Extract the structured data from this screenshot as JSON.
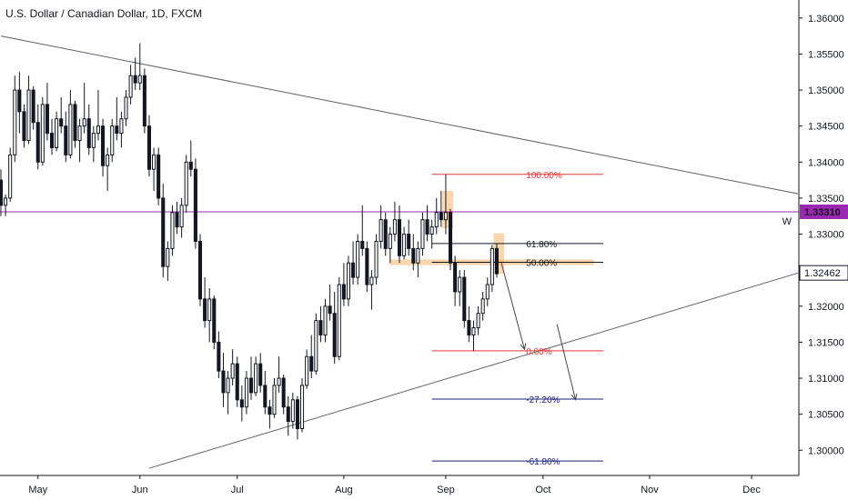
{
  "header": {
    "title": "U.S. Dollar / Canadian Dollar, 1D, FXCM"
  },
  "colors": {
    "candle": "#131722",
    "trendline": "#5d606b",
    "horizontal_line": "#9c27b0",
    "fib_100": "#e53935",
    "fib_0": "#e53935",
    "fib_618": "#131722",
    "fib_50": "#131722",
    "fib_ext": "#1a237e",
    "zone": "#f5b56b",
    "arrow": "#434651"
  },
  "chart_data": {
    "type": "candlestick",
    "ylim": [
      1.2965,
      1.3625
    ],
    "y_ticks": [
      "1.36000",
      "1.35500",
      "1.35000",
      "1.34500",
      "1.34000",
      "1.33500",
      "1.33000",
      "1.32500",
      "1.32000",
      "1.31500",
      "1.31000",
      "1.30500",
      "1.30000"
    ],
    "y_tick_values": [
      1.36,
      1.355,
      1.35,
      1.345,
      1.34,
      1.335,
      1.33,
      1.325,
      1.32,
      1.315,
      1.31,
      1.305,
      1.3
    ],
    "x_labels": [
      {
        "label": "May",
        "index": 8
      },
      {
        "label": "Jun",
        "index": 30
      },
      {
        "label": "Jul",
        "index": 51
      },
      {
        "label": "Aug",
        "index": 74
      },
      {
        "label": "Sep",
        "index": 96
      },
      {
        "label": "Oct",
        "index": 117
      },
      {
        "label": "Nov",
        "index": 140
      },
      {
        "label": "Dec",
        "index": 162
      }
    ],
    "x_range": [
      0,
      172
    ],
    "price_labels": [
      {
        "text": "1.33310",
        "value": 1.3331,
        "style": "highlight"
      },
      {
        "text": "1.32462",
        "value": 1.32462,
        "style": "plain"
      }
    ],
    "horizontal_line": {
      "value": 1.3331,
      "tag": "W"
    },
    "trendlines": [
      {
        "from": [
          0,
          1.3575
        ],
        "to": [
          172,
          1.3356
        ]
      },
      {
        "from": [
          32,
          1.2975
        ],
        "to": [
          172,
          1.3246
        ]
      }
    ],
    "fib_levels": [
      {
        "label": "100.00%",
        "value": 1.3383,
        "from": 93,
        "to": 130,
        "key": "fib_100"
      },
      {
        "label": "61.80%",
        "value": 1.3287,
        "from": 93,
        "to": 130,
        "key": "fib_618"
      },
      {
        "label": "50.00%",
        "value": 1.3261,
        "from": 93,
        "to": 130,
        "key": "fib_50"
      },
      {
        "label": "0.00%",
        "value": 1.3138,
        "from": 93,
        "to": 130,
        "key": "fib_0"
      },
      {
        "label": "-27.20%",
        "value": 1.3071,
        "from": 93,
        "to": 130,
        "key": "fib_ext"
      },
      {
        "label": "-61.80%",
        "value": 1.2985,
        "from": 93,
        "to": 130,
        "key": "fib_ext"
      }
    ],
    "zones": [
      {
        "x0": 84,
        "x1": 128,
        "y0": 1.3265,
        "y1": 1.3257
      },
      {
        "x0": 95.3,
        "x1": 97.6,
        "y0": 1.336,
        "y1": 1.3308
      },
      {
        "x0": 106.3,
        "x1": 108.6,
        "y0": 1.3301,
        "y1": 1.3245
      }
    ],
    "arrows": [
      {
        "from": [
          108,
          1.326
        ],
        "to": [
          113,
          1.314
        ]
      },
      {
        "from": [
          120,
          1.3175
        ],
        "to": [
          124,
          1.307
        ]
      }
    ],
    "candles": [
      [
        1.3375,
        1.339,
        1.3325,
        1.334
      ],
      [
        1.334,
        1.3355,
        1.3325,
        1.335
      ],
      [
        1.335,
        1.342,
        1.3345,
        1.341
      ],
      [
        1.341,
        1.352,
        1.34,
        1.35
      ],
      [
        1.35,
        1.3525,
        1.344,
        1.347
      ],
      [
        1.347,
        1.348,
        1.342,
        1.343
      ],
      [
        1.343,
        1.352,
        1.3425,
        1.35
      ],
      [
        1.35,
        1.3505,
        1.3445,
        1.3455
      ],
      [
        1.3455,
        1.348,
        1.339,
        1.34
      ],
      [
        1.34,
        1.349,
        1.3395,
        1.348
      ],
      [
        1.348,
        1.351,
        1.343,
        1.344
      ],
      [
        1.344,
        1.346,
        1.341,
        1.342
      ],
      [
        1.342,
        1.347,
        1.3415,
        1.346
      ],
      [
        1.346,
        1.349,
        1.344,
        1.345
      ],
      [
        1.345,
        1.347,
        1.34,
        1.341
      ],
      [
        1.341,
        1.35,
        1.3405,
        1.348
      ],
      [
        1.348,
        1.3485,
        1.342,
        1.343
      ],
      [
        1.343,
        1.346,
        1.34,
        1.345
      ],
      [
        1.345,
        1.351,
        1.344,
        1.346
      ],
      [
        1.346,
        1.348,
        1.341,
        1.342
      ],
      [
        1.342,
        1.345,
        1.34,
        1.344
      ],
      [
        1.344,
        1.35,
        1.343,
        1.345
      ],
      [
        1.345,
        1.346,
        1.338,
        1.3395
      ],
      [
        1.3395,
        1.342,
        1.336,
        1.341
      ],
      [
        1.341,
        1.346,
        1.34,
        1.345
      ],
      [
        1.345,
        1.349,
        1.343,
        1.344
      ],
      [
        1.344,
        1.347,
        1.342,
        1.346
      ],
      [
        1.346,
        1.35,
        1.345,
        1.349
      ],
      [
        1.349,
        1.3535,
        1.348,
        1.352
      ],
      [
        1.352,
        1.3545,
        1.35,
        1.351
      ],
      [
        1.351,
        1.3565,
        1.35,
        1.352
      ],
      [
        1.352,
        1.353,
        1.344,
        1.345
      ],
      [
        1.345,
        1.3465,
        1.338,
        1.339
      ],
      [
        1.339,
        1.342,
        1.336,
        1.341
      ],
      [
        1.341,
        1.342,
        1.334,
        1.335
      ],
      [
        1.335,
        1.337,
        1.324,
        1.3255
      ],
      [
        1.3255,
        1.329,
        1.3235,
        1.328
      ],
      [
        1.328,
        1.334,
        1.327,
        1.333
      ],
      [
        1.333,
        1.3345,
        1.33,
        1.331
      ],
      [
        1.331,
        1.335,
        1.3295,
        1.334
      ],
      [
        1.334,
        1.341,
        1.333,
        1.34
      ],
      [
        1.34,
        1.343,
        1.338,
        1.339
      ],
      [
        1.339,
        1.3405,
        1.328,
        1.329
      ],
      [
        1.329,
        1.33,
        1.32,
        1.321
      ],
      [
        1.321,
        1.324,
        1.317,
        1.318
      ],
      [
        1.318,
        1.3225,
        1.315,
        1.321
      ],
      [
        1.321,
        1.3215,
        1.314,
        1.315
      ],
      [
        1.315,
        1.3165,
        1.31,
        1.311
      ],
      [
        1.311,
        1.3135,
        1.306,
        1.308
      ],
      [
        1.308,
        1.311,
        1.305,
        1.31
      ],
      [
        1.31,
        1.314,
        1.309,
        1.312
      ],
      [
        1.312,
        1.313,
        1.306,
        1.307
      ],
      [
        1.307,
        1.309,
        1.304,
        1.306
      ],
      [
        1.306,
        1.311,
        1.305,
        1.31
      ],
      [
        1.31,
        1.313,
        1.307,
        1.308
      ],
      [
        1.308,
        1.313,
        1.3075,
        1.312
      ],
      [
        1.312,
        1.3135,
        1.308,
        1.309
      ],
      [
        1.309,
        1.311,
        1.305,
        1.306
      ],
      [
        1.306,
        1.307,
        1.303,
        1.305
      ],
      [
        1.305,
        1.31,
        1.3045,
        1.309
      ],
      [
        1.309,
        1.313,
        1.308,
        1.31
      ],
      [
        1.31,
        1.3105,
        1.305,
        1.306
      ],
      [
        1.306,
        1.3075,
        1.302,
        1.304
      ],
      [
        1.304,
        1.308,
        1.303,
        1.307
      ],
      [
        1.307,
        1.3075,
        1.3015,
        1.303
      ],
      [
        1.303,
        1.31,
        1.3025,
        1.309
      ],
      [
        1.309,
        1.314,
        1.3085,
        1.313
      ],
      [
        1.313,
        1.316,
        1.31,
        1.311
      ],
      [
        1.311,
        1.319,
        1.3105,
        1.318
      ],
      [
        1.318,
        1.32,
        1.315,
        1.316
      ],
      [
        1.316,
        1.321,
        1.315,
        1.32
      ],
      [
        1.32,
        1.323,
        1.318,
        1.319
      ],
      [
        1.319,
        1.322,
        1.312,
        1.313
      ],
      [
        1.313,
        1.324,
        1.3125,
        1.323
      ],
      [
        1.323,
        1.326,
        1.32,
        1.321
      ],
      [
        1.321,
        1.327,
        1.32,
        1.326
      ],
      [
        1.326,
        1.329,
        1.323,
        1.324
      ],
      [
        1.324,
        1.33,
        1.323,
        1.329
      ],
      [
        1.329,
        1.334,
        1.327,
        1.328
      ],
      [
        1.328,
        1.329,
        1.322,
        1.323
      ],
      [
        1.323,
        1.325,
        1.3195,
        1.324
      ],
      [
        1.324,
        1.33,
        1.323,
        1.329
      ],
      [
        1.329,
        1.334,
        1.328,
        1.332
      ],
      [
        1.332,
        1.333,
        1.327,
        1.328
      ],
      [
        1.328,
        1.331,
        1.326,
        1.33
      ],
      [
        1.33,
        1.3345,
        1.329,
        1.332
      ],
      [
        1.332,
        1.334,
        1.326,
        1.327
      ],
      [
        1.327,
        1.331,
        1.3265,
        1.33
      ],
      [
        1.33,
        1.332,
        1.327,
        1.328
      ],
      [
        1.328,
        1.33,
        1.325,
        1.326
      ],
      [
        1.326,
        1.329,
        1.324,
        1.328
      ],
      [
        1.328,
        1.333,
        1.327,
        1.332
      ],
      [
        1.332,
        1.334,
        1.329,
        1.33
      ],
      [
        1.33,
        1.332,
        1.328,
        1.331
      ],
      [
        1.331,
        1.335,
        1.33,
        1.333
      ],
      [
        1.333,
        1.336,
        1.331,
        1.332
      ],
      [
        1.332,
        1.3383,
        1.33,
        1.333
      ],
      [
        1.333,
        1.3335,
        1.325,
        1.326
      ],
      [
        1.326,
        1.327,
        1.32,
        1.322
      ],
      [
        1.322,
        1.325,
        1.32,
        1.324
      ],
      [
        1.324,
        1.325,
        1.317,
        1.318
      ],
      [
        1.318,
        1.32,
        1.315,
        1.316
      ],
      [
        1.316,
        1.318,
        1.3138,
        1.317
      ],
      [
        1.317,
        1.32,
        1.316,
        1.319
      ],
      [
        1.319,
        1.322,
        1.318,
        1.321
      ],
      [
        1.321,
        1.324,
        1.32,
        1.323
      ],
      [
        1.323,
        1.3285,
        1.322,
        1.328
      ],
      [
        1.328,
        1.3287,
        1.324,
        1.3245
      ]
    ]
  }
}
